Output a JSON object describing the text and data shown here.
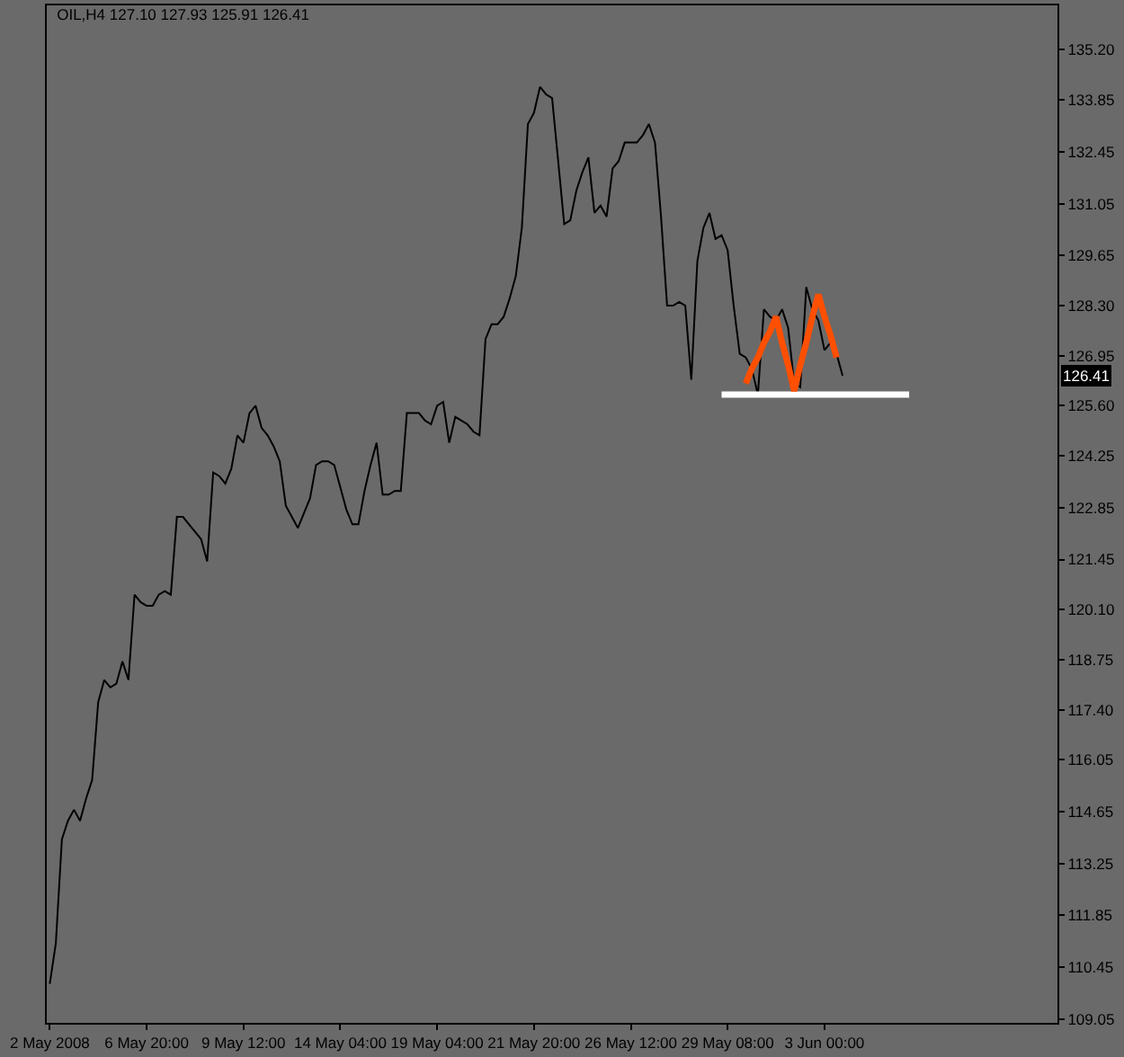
{
  "chart_data": {
    "type": "line",
    "title": "OIL,H4 127.10 127.93 125.91 126.41",
    "categories": [
      "2 May 2008",
      null,
      null,
      null,
      null,
      null,
      null,
      null,
      null,
      null,
      null,
      null,
      null,
      null,
      null,
      null,
      "6 May 20:00",
      null,
      null,
      null,
      null,
      null,
      null,
      null,
      null,
      null,
      null,
      null,
      null,
      null,
      null,
      null,
      "9 May 12:00",
      null,
      null,
      null,
      null,
      null,
      null,
      null,
      null,
      null,
      null,
      null,
      null,
      null,
      null,
      null,
      "14 May 04:00",
      null,
      null,
      null,
      null,
      null,
      null,
      null,
      null,
      null,
      null,
      null,
      null,
      null,
      null,
      null,
      "19 May 04:00",
      null,
      null,
      null,
      null,
      null,
      null,
      null,
      null,
      null,
      null,
      null,
      null,
      null,
      null,
      null,
      "21 May 20:00",
      null,
      null,
      null,
      null,
      null,
      null,
      null,
      null,
      null,
      null,
      null,
      null,
      null,
      null,
      null,
      "26 May 12:00",
      null,
      null,
      null,
      null,
      null,
      null,
      null,
      null,
      null,
      null,
      null,
      null,
      null,
      null,
      null,
      "29 May 08:00",
      null,
      null,
      null,
      null,
      null,
      null,
      null,
      null,
      null,
      null,
      null,
      null,
      null,
      null,
      null,
      "3 Jun 00:00",
      null,
      null,
      null,
      null,
      null,
      null,
      null,
      null,
      null,
      null,
      null,
      null,
      null,
      null,
      null,
      null,
      null,
      null,
      null,
      null,
      null,
      null,
      null,
      null,
      null,
      null,
      null,
      null,
      null,
      null,
      null,
      null,
      null,
      null,
      null,
      null,
      null,
      null
    ],
    "series": [
      {
        "color": "#000000",
        "values": [
          110.0,
          111.1,
          113.9,
          114.4,
          114.7,
          114.4,
          115.0,
          115.5,
          117.6,
          118.2,
          118.0,
          118.1,
          118.7,
          118.2,
          120.5,
          120.3,
          120.2,
          120.2,
          120.5,
          120.6,
          120.5,
          122.6,
          122.6,
          122.4,
          122.2,
          122.0,
          121.4,
          123.8,
          123.7,
          123.5,
          123.9,
          124.8,
          124.6,
          125.4,
          125.6,
          125.0,
          124.8,
          124.5,
          124.1,
          122.9,
          122.6,
          122.3,
          122.7,
          123.1,
          124.0,
          124.1,
          124.1,
          124.0,
          123.4,
          122.8,
          122.4,
          122.4,
          123.3,
          124.0,
          124.6,
          123.2,
          123.2,
          123.3,
          123.3,
          125.4,
          125.4,
          125.4,
          125.2,
          125.1,
          125.6,
          125.7,
          124.6,
          125.3,
          125.2,
          125.1,
          124.9,
          124.8,
          127.4,
          127.8,
          127.8,
          128.0,
          128.5,
          129.1,
          130.4,
          133.2,
          133.5,
          134.2,
          134.0,
          133.9,
          132.2,
          130.5,
          130.6,
          131.4,
          131.9,
          132.3,
          130.8,
          131.0,
          130.7,
          132.0,
          132.2,
          132.7,
          132.7,
          132.7,
          132.9,
          133.2,
          132.7,
          130.7,
          128.3,
          128.3,
          128.4,
          128.3,
          126.3,
          129.5,
          130.4,
          130.8,
          130.1,
          130.2,
          129.8,
          128.3,
          127.0,
          126.9,
          126.6,
          125.9,
          128.2,
          128.0,
          127.9,
          128.2,
          127.7,
          126.2,
          126.1,
          128.8,
          128.2,
          127.9,
          127.1,
          127.3,
          127.0,
          126.41,
          null,
          null,
          null,
          null,
          null,
          null,
          null,
          null,
          null,
          null,
          null,
          null,
          null,
          null,
          null,
          null,
          null,
          null,
          null,
          null,
          null,
          null,
          null,
          null,
          null,
          null,
          null,
          null,
          null,
          null,
          null,
          null,
          null,
          null,
          null
        ]
      },
      {
        "color": "#ffffff",
        "values": [
          null,
          null,
          null,
          null,
          null,
          null,
          null,
          null,
          null,
          null,
          null,
          null,
          null,
          null,
          null,
          null,
          null,
          null,
          null,
          null,
          null,
          null,
          null,
          null,
          null,
          null,
          null,
          null,
          null,
          null,
          null,
          null,
          null,
          null,
          null,
          null,
          null,
          null,
          null,
          null,
          null,
          null,
          null,
          null,
          null,
          null,
          null,
          null,
          null,
          null,
          null,
          null,
          null,
          null,
          null,
          null,
          null,
          null,
          null,
          null,
          null,
          null,
          null,
          null,
          null,
          null,
          null,
          null,
          null,
          null,
          null,
          null,
          null,
          null,
          null,
          null,
          null,
          null,
          null,
          null,
          null,
          null,
          null,
          null,
          null,
          null,
          null,
          null,
          null,
          null,
          null,
          null,
          null,
          null,
          null,
          null,
          null,
          null,
          null,
          null,
          null,
          null,
          null,
          null,
          null,
          null,
          null,
          null,
          null,
          null,
          null,
          125.9,
          125.9,
          125.9,
          125.9,
          125.9,
          125.9,
          125.9,
          125.9,
          125.9,
          125.9,
          125.9,
          125.9,
          125.9,
          125.9,
          125.9,
          125.9,
          125.9,
          125.9,
          125.9,
          125.9,
          125.9,
          125.9,
          125.9,
          125.9,
          125.9,
          125.9,
          125.9,
          125.9,
          125.9,
          125.9,
          125.9,
          125.9,
          null,
          null,
          null,
          null,
          null,
          null,
          null,
          null,
          null,
          null,
          null,
          null,
          null,
          null,
          null,
          null,
          null,
          null,
          null,
          null,
          null,
          null,
          null,
          null
        ]
      },
      {
        "color": "#ff4f00",
        "values": [
          null,
          null,
          null,
          null,
          null,
          null,
          null,
          null,
          null,
          null,
          null,
          null,
          null,
          null,
          null,
          null,
          null,
          null,
          null,
          null,
          null,
          null,
          null,
          null,
          null,
          null,
          null,
          null,
          null,
          null,
          null,
          null,
          null,
          null,
          null,
          null,
          null,
          null,
          null,
          null,
          null,
          null,
          null,
          null,
          null,
          null,
          null,
          null,
          null,
          null,
          null,
          null,
          null,
          null,
          null,
          null,
          null,
          null,
          null,
          null,
          null,
          null,
          null,
          null,
          null,
          null,
          null,
          null,
          null,
          null,
          null,
          null,
          null,
          null,
          null,
          null,
          null,
          null,
          null,
          null,
          null,
          null,
          null,
          null,
          null,
          null,
          null,
          null,
          null,
          null,
          null,
          null,
          null,
          null,
          null,
          null,
          null,
          null,
          null,
          null,
          null,
          null,
          null,
          null,
          null,
          null,
          null,
          null,
          null,
          null,
          null,
          null,
          null,
          null,
          null,
          126.2,
          126.6,
          126.9,
          127.3,
          127.6,
          128.0,
          127.3,
          126.7,
          126.0,
          126.7,
          127.3,
          128.0,
          128.6,
          128.0,
          127.5,
          126.9,
          null,
          null,
          null,
          null,
          null,
          null,
          null,
          null,
          null,
          null,
          null,
          null,
          null,
          null,
          null,
          null,
          null,
          null,
          null,
          null,
          null,
          null,
          null,
          null,
          null,
          null,
          null,
          null,
          null,
          null,
          null,
          null,
          null,
          null,
          null,
          null
        ]
      }
    ],
    "annotations": [
      {
        "text": "126.41",
        "y": 126.41
      }
    ],
    "ylim": [
      108.95,
      136.4
    ],
    "yticks": [
      {
        "value": 135.2,
        "label": "135.20"
      },
      133.85,
      132.45,
      131.05,
      129.65,
      {
        "value": 128.3,
        "label": "128.30"
      },
      126.95,
      {
        "value": 125.6,
        "label": "125.60"
      },
      124.25,
      122.85,
      121.45,
      {
        "value": 120.1,
        "label": "120.10"
      },
      118.75,
      {
        "value": 117.4,
        "label": "117.40"
      },
      116.05,
      114.65,
      113.25,
      111.85,
      110.45,
      109.05
    ]
  }
}
